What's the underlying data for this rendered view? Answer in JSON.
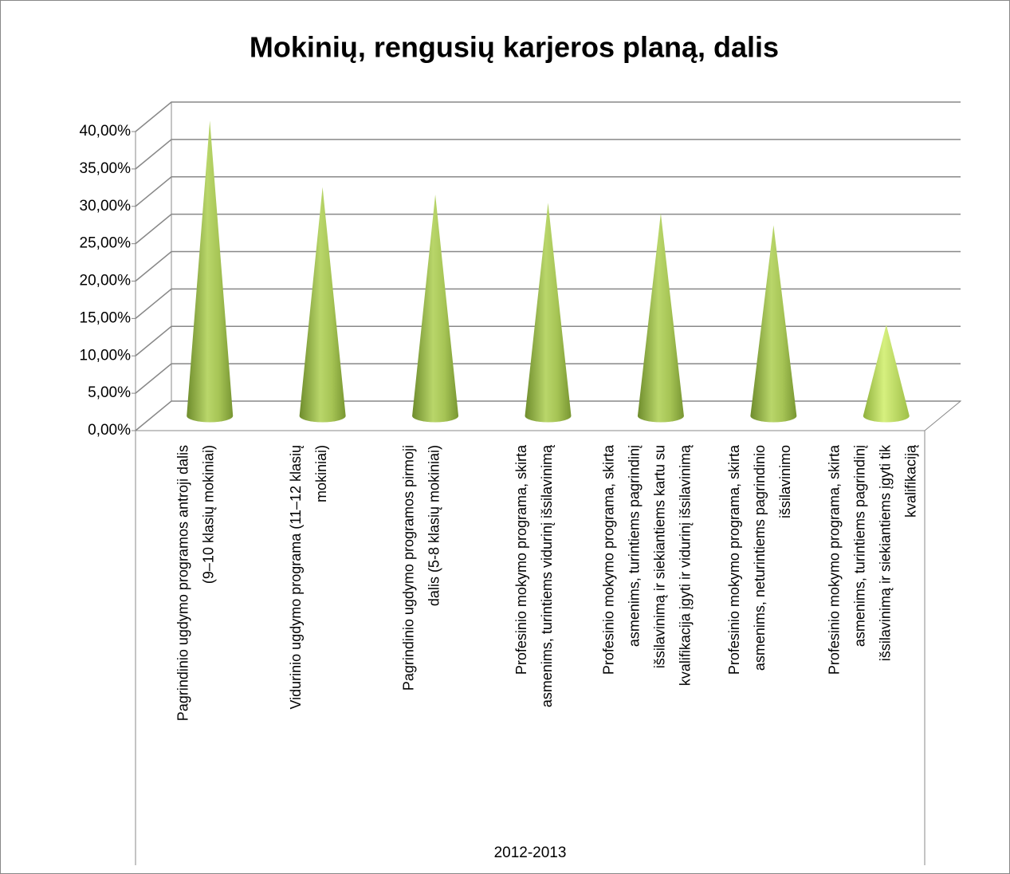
{
  "chart_data": {
    "type": "cone",
    "title": "Mokinių, rengusių karjeros planą, dalis",
    "categories": [
      "Pagrindinio ugdymo programos antroji dalis\n(9–10 klasių mokiniai)",
      "Vidurinio ugdymo programa (11–12 klasių\nmokiniai)",
      "Pagrindinio ugdymo programos pirmoji\ndalis (5-8 klasių mokiniai)",
      "Profesinio mokymo programa, skirta\nasmenims, turintiems vidurinį išsilavinimą",
      "Profesinio mokymo programa, skirta\nasmenims, turintiems pagrindinį\nišsilavinimą ir siekiantiems kartu su\nkvalifikacija įgyti ir vidurinį išsilavinimą",
      "Profesinio mokymo programa, skirta\nasmenims, neturintiems pagrindinio\nišsilavinimo",
      "Profesinio mokymo programa, skirta\nasmenims, turintiems pagrindinį\nišsilavinimą ir siekiantiems įgyti tik\nkvalifikaciją"
    ],
    "values": [
      39.5,
      30.6,
      29.6,
      28.5,
      27.1,
      25.5,
      12.2
    ],
    "color": "#9bbb59",
    "xlabel": "2012-2013",
    "ylim": [
      0,
      40
    ],
    "yticks": [
      {
        "value": 0,
        "label": "0,00%"
      },
      {
        "value": 5,
        "label": "5,00%"
      },
      {
        "value": 10,
        "label": "10,00%"
      },
      {
        "value": 15,
        "label": "15,00%"
      },
      {
        "value": 20,
        "label": "20,00%"
      },
      {
        "value": 25,
        "label": "25,00%"
      },
      {
        "value": 30,
        "label": "30,00%"
      },
      {
        "value": 35,
        "label": "35,00%"
      },
      {
        "value": 40,
        "label": "40,00%"
      }
    ],
    "grid": true
  }
}
